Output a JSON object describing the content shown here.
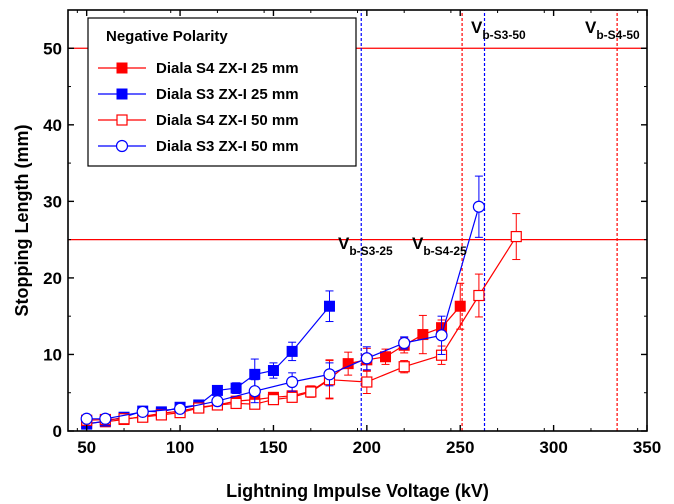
{
  "chart_data": {
    "type": "line",
    "title": "",
    "xlabel": "Lightning Impulse Voltage (kV)",
    "ylabel": "Stopping Length (mm)",
    "xlim": [
      40,
      350
    ],
    "ylim": [
      0,
      55
    ],
    "xticks": [
      50,
      100,
      150,
      200,
      250,
      300,
      350
    ],
    "yticks": [
      0,
      10,
      20,
      30,
      40,
      50
    ],
    "grid": false,
    "legend": {
      "title": "Negative Polarity",
      "placement": "top-left"
    },
    "series": [
      {
        "name": "Diala S4 ZX-I 25 mm",
        "color": "#ff0000",
        "marker": "square-filled",
        "x": [
          50,
          60,
          70,
          80,
          90,
          100,
          110,
          120,
          130,
          140,
          150,
          160,
          170,
          180,
          190,
          200,
          210,
          220,
          230,
          240,
          250
        ],
        "y": [
          1.0,
          1.2,
          1.5,
          1.9,
          2.3,
          2.6,
          3.1,
          3.4,
          3.9,
          4.1,
          4.4,
          4.6,
          5.2,
          6.8,
          8.8,
          9.3,
          9.7,
          11.2,
          12.6,
          13.5,
          16.3
        ],
        "err": [
          0.3,
          0.3,
          0.3,
          0.4,
          0.4,
          0.4,
          0.5,
          0.5,
          0.6,
          0.6,
          0.6,
          0.6,
          0.7,
          2.5,
          1.5,
          1.5,
          1.0,
          1.0,
          2.5,
          1.0,
          3.0
        ]
      },
      {
        "name": "Diala S3 ZX-I 25 mm",
        "color": "#0000ff",
        "marker": "square-filled",
        "x": [
          50,
          60,
          70,
          80,
          90,
          100,
          110,
          120,
          130,
          140,
          150,
          160,
          180
        ],
        "y": [
          0.9,
          1.3,
          1.8,
          2.6,
          2.5,
          3.1,
          3.4,
          5.3,
          5.6,
          7.4,
          7.9,
          10.4,
          16.3
        ],
        "err": [
          0.2,
          0.3,
          0.3,
          0.4,
          0.4,
          0.4,
          0.5,
          0.6,
          0.7,
          2.0,
          1.0,
          1.2,
          2.0
        ]
      },
      {
        "name": "Diala S4 ZX-I 50 mm",
        "color": "#ff0000",
        "marker": "square-open",
        "x": [
          50,
          60,
          70,
          80,
          90,
          100,
          110,
          120,
          130,
          140,
          150,
          160,
          170,
          180,
          200,
          220,
          240,
          260,
          280
        ],
        "y": [
          1.4,
          1.5,
          1.6,
          1.8,
          2.1,
          2.4,
          3.0,
          3.4,
          3.6,
          3.5,
          4.1,
          4.4,
          5.1,
          6.7,
          6.4,
          8.4,
          9.9,
          17.7,
          25.4
        ],
        "err": [
          0.3,
          0.3,
          0.3,
          0.3,
          0.4,
          0.4,
          0.4,
          0.5,
          0.5,
          0.5,
          0.5,
          0.6,
          0.7,
          2.5,
          1.5,
          0.8,
          1.2,
          2.8,
          3.0
        ]
      },
      {
        "name": "Diala S3 ZX-I 50 mm",
        "color": "#0000ff",
        "marker": "circle-open",
        "x": [
          50,
          60,
          80,
          100,
          120,
          140,
          160,
          180,
          200,
          220,
          240,
          260
        ],
        "y": [
          1.6,
          1.6,
          2.5,
          2.9,
          3.9,
          5.2,
          6.4,
          7.4,
          9.5,
          11.5,
          12.5,
          29.3
        ],
        "err": [
          0.3,
          0.3,
          0.4,
          0.4,
          0.6,
          1.5,
          1.2,
          1.5,
          1.5,
          0.8,
          2.5,
          4.0
        ]
      }
    ],
    "reference_lines": {
      "horizontal": [
        {
          "y": 25,
          "color": "#ff0000"
        },
        {
          "y": 50,
          "color": "#ff0000"
        }
      ],
      "vertical": [
        {
          "x": 197,
          "color": "#0000ff",
          "label_main": "V",
          "label_sub": "b-S3-25"
        },
        {
          "x": 251,
          "color": "#ff0000",
          "label_main": "V",
          "label_sub": "b-S4-25"
        },
        {
          "x": 263,
          "color": "#0000ff",
          "label_main": "V",
          "label_sub": "b-S3-50"
        },
        {
          "x": 334,
          "color": "#ff0000",
          "label_main": "V",
          "label_sub": "b-S4-50"
        }
      ]
    }
  }
}
